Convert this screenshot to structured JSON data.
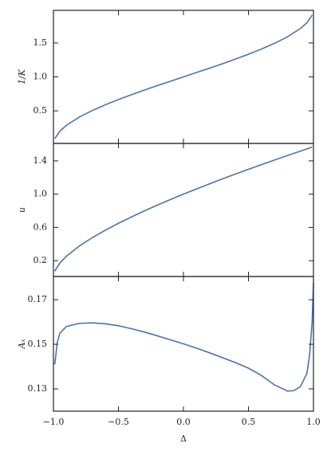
{
  "chart_data": [
    {
      "type": "line",
      "ylabel": "1/K",
      "x": [
        -0.99,
        -0.95,
        -0.9,
        -0.8,
        -0.7,
        -0.6,
        -0.5,
        -0.4,
        -0.3,
        -0.2,
        -0.1,
        0,
        0.1,
        0.2,
        0.3,
        0.4,
        0.5,
        0.6,
        0.7,
        0.8,
        0.9,
        0.95,
        0.99
      ],
      "series": [
        {
          "color": "#4c72b0",
          "values": [
            0.09,
            0.202,
            0.287,
            0.41,
            0.506,
            0.59,
            0.667,
            0.738,
            0.806,
            0.872,
            0.936,
            1.0,
            1.064,
            1.128,
            1.194,
            1.262,
            1.333,
            1.41,
            1.494,
            1.59,
            1.713,
            1.798,
            1.91
          ]
        }
      ],
      "xlim": [
        -1,
        1
      ],
      "xticks": [
        -1,
        -0.5,
        0,
        0.5,
        1
      ],
      "ylim": [
        0.02,
        1.98
      ],
      "yticks": [
        0.5,
        {
          "value": 1.0,
          "label": "1.0"
        },
        1.5
      ]
    },
    {
      "type": "line",
      "ylabel": "u",
      "x": [
        -0.99,
        -0.95,
        -0.9,
        -0.8,
        -0.7,
        -0.6,
        -0.5,
        -0.4,
        -0.3,
        -0.2,
        -0.1,
        0,
        0.1,
        0.2,
        0.3,
        0.4,
        0.5,
        0.6,
        0.7,
        0.8,
        0.9,
        0.95,
        0.99
      ],
      "series": [
        {
          "color": "#4c72b0",
          "values": [
            0.0739,
            0.1737,
            0.2545,
            0.3773,
            0.4781,
            0.5675,
            0.6495,
            0.7262,
            0.7989,
            0.8684,
            0.9353,
            1.0,
            1.0628,
            1.1239,
            1.1835,
            1.2418,
            1.299,
            1.3552,
            1.4103,
            1.4646,
            1.5182,
            1.5441,
            1.5664
          ]
        }
      ],
      "xlim": [
        -1,
        1
      ],
      "xticks": [
        -1,
        -0.5,
        0,
        0.5,
        1
      ],
      "ylim": [
        0.01,
        1.61
      ],
      "yticks": [
        0.2,
        0.6,
        {
          "value": 1.0,
          "label": "1.0"
        },
        1.4
      ]
    },
    {
      "type": "line",
      "ylabel": "Aₓ",
      "xlabel": "Δ",
      "x": [
        -0.99,
        -0.97,
        -0.95,
        -0.9,
        -0.8,
        -0.7,
        -0.6,
        -0.5,
        -0.4,
        -0.3,
        -0.2,
        -0.1,
        0,
        0.1,
        0.2,
        0.3,
        0.4,
        0.5,
        0.6,
        0.7,
        0.8,
        0.85,
        0.9,
        0.95,
        0.97,
        0.99,
        1.0
      ],
      "series": [
        {
          "color": "#4c72b0",
          "values": [
            0.141,
            0.151,
            0.155,
            0.158,
            0.1594,
            0.1596,
            0.1592,
            0.1583,
            0.157,
            0.1555,
            0.1538,
            0.152,
            0.1502,
            0.1483,
            0.1462,
            0.144,
            0.1418,
            0.1393,
            0.136,
            0.1318,
            0.129,
            0.1292,
            0.131,
            0.137,
            0.145,
            0.16,
            0.1775
          ]
        }
      ],
      "xlim": [
        -1,
        1
      ],
      "xticks": [
        {
          "value": -1,
          "label": "−1.0"
        },
        {
          "value": -0.5,
          "label": "−0.5"
        },
        {
          "value": 0,
          "label": "0.0"
        },
        0.5,
        {
          "value": 1,
          "label": "1.0"
        }
      ],
      "ylim": [
        0.12,
        0.1804
      ],
      "yticks": [
        0.13,
        0.15,
        0.17
      ]
    }
  ]
}
